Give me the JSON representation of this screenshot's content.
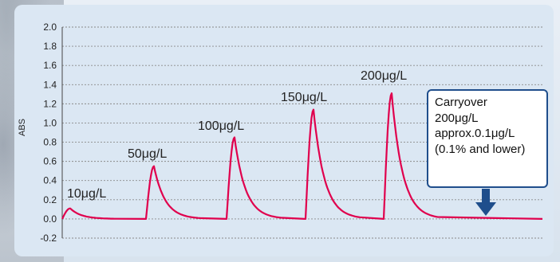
{
  "colors": {
    "series": "#e0004d",
    "axis": "#444444",
    "grid": "#8a8a8a",
    "callout_border": "#1f4e8c",
    "arrow": "#1f4e8c",
    "panel": "#dbe7f3"
  },
  "chart_data": {
    "type": "line",
    "title": "",
    "xlabel": "",
    "ylabel": "ABS",
    "ylim": [
      -0.2,
      2.0
    ],
    "y_ticks": [
      "2.0",
      "1.8",
      "1.6",
      "1.4",
      "1.2",
      "1.0",
      "0.8",
      "0.6",
      "0.4",
      "0.2",
      "0.0",
      "-0.2"
    ],
    "grid": "horizontal dotted",
    "series": [
      {
        "peaks": [
          {
            "label": "10μg/L",
            "height": 0.11
          },
          {
            "label": "50μg/L",
            "height": 0.55
          },
          {
            "label": "100μg/L",
            "height": 0.85
          },
          {
            "label": "150μg/L",
            "height": 1.14
          },
          {
            "label": "200μg/L",
            "height": 1.31
          }
        ],
        "baseline": 0.0
      }
    ],
    "annotation": {
      "lines": [
        "Carryover",
        "200μg/L",
        "approx.0.1μg/L",
        "(0.1% and lower)"
      ],
      "arrow": "down"
    }
  }
}
